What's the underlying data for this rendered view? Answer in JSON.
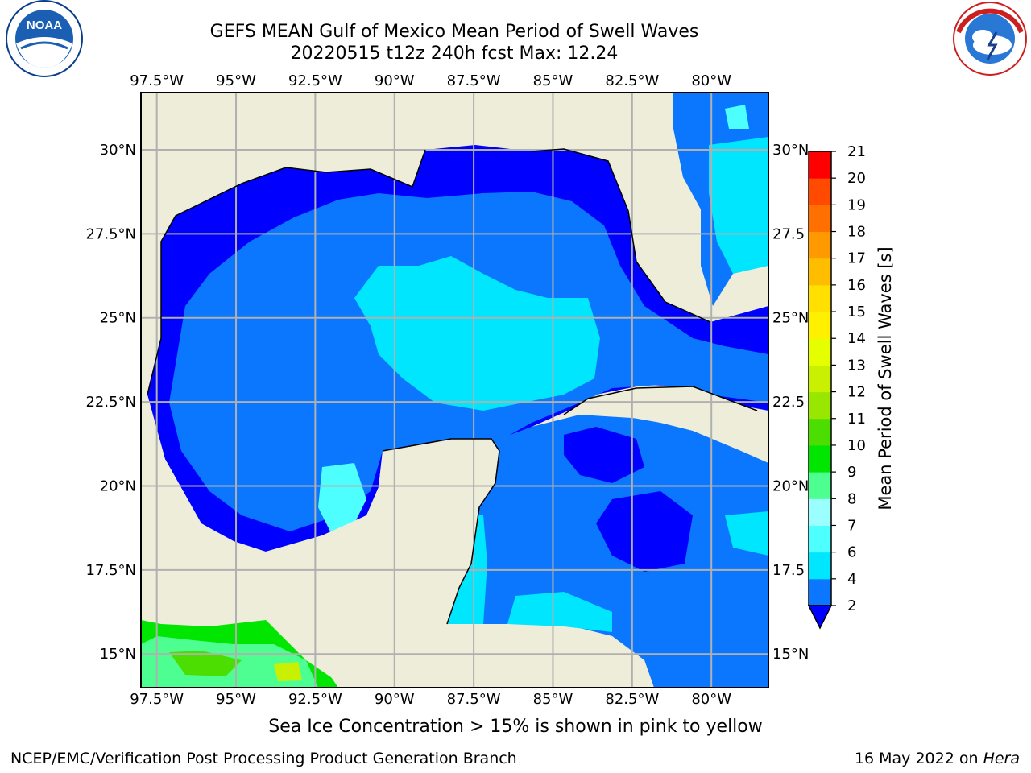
{
  "header": {
    "title_line1": "GEFS MEAN Gulf of Mexico Mean Period of Swell Waves",
    "title_line2": "20220515 t12z 240h fcst   Max: 12.24"
  },
  "logos": {
    "left": {
      "name": "noaa-logo",
      "text": "NOAA",
      "ring_text": "NATIONAL OCEANIC AND ATMOSPHERIC ADMINISTRATION · U.S. DEPARTMENT OF COMMERCE"
    },
    "right": {
      "name": "nws-logo",
      "ring_text": "NATIONAL WEATHER SERVICE"
    }
  },
  "map": {
    "lon_labels": [
      "97.5°W",
      "95°W",
      "92.5°W",
      "90°W",
      "87.5°W",
      "85°W",
      "82.5°W",
      "80°W"
    ],
    "lon_values": [
      -97.5,
      -95,
      -92.5,
      -90,
      -87.5,
      -85,
      -82.5,
      -80
    ],
    "lat_labels_left": [
      "30°N",
      "27.5°N",
      "25°N",
      "22.5°N",
      "20°N",
      "17.5°N",
      "15°N"
    ],
    "lat_labels_right": [
      "30°N",
      "27.5",
      "25°N",
      "22.5",
      "20°N",
      "17.5",
      "15°N"
    ],
    "lat_values": [
      30,
      27.5,
      25,
      22.5,
      20,
      17.5,
      15
    ],
    "extent": {
      "lon_min": -98,
      "lon_max": -78.2,
      "lat_min": 14,
      "lat_max": 31.7
    },
    "colors": {
      "land": "#eeedda",
      "grid": "#b0b0b0",
      "coast": "#000000"
    }
  },
  "colorbar": {
    "label": "Mean Period of Swell Waves [s]",
    "ticks": [
      "2",
      "4",
      "6",
      "7",
      "8",
      "9",
      "10",
      "11",
      "12",
      "13",
      "14",
      "15",
      "16",
      "17",
      "18",
      "19",
      "20",
      "21"
    ],
    "colors": [
      "#0b77ff",
      "#00e6ff",
      "#4dffff",
      "#9bffff",
      "#4dff90",
      "#00e600",
      "#4cde00",
      "#99e600",
      "#c8f000",
      "#e6ff00",
      "#fff000",
      "#ffe000",
      "#ffbd00",
      "#ff9900",
      "#ff7000",
      "#ff4a00",
      "#ff0000"
    ],
    "under_color": "#0000ff"
  },
  "notes": {
    "sea_ice": "Sea Ice Concentration > 15% is shown in pink to yellow"
  },
  "footer": {
    "left": "NCEP/EMC/Verification Post Processing Product Generation Branch",
    "date": "16 May 2022 on ",
    "host": "Hera"
  }
}
